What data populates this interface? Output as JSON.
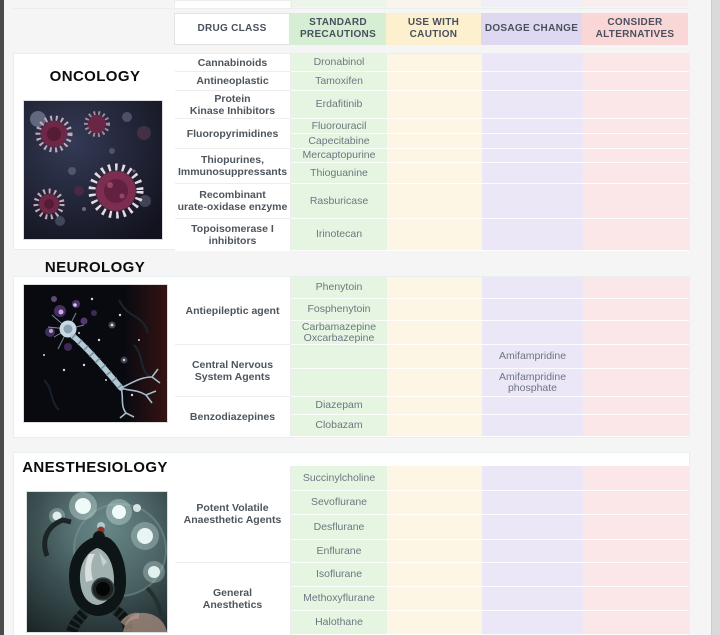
{
  "header": {
    "columns": [
      {
        "id": "drug_class",
        "label": "DRUG CLASS",
        "bg": "#ffffff"
      },
      {
        "id": "standard",
        "label": "STANDARD\nPRECAUTIONS",
        "bg": "#d6eed4"
      },
      {
        "id": "caution",
        "label": "USE WITH\nCAUTION",
        "bg": "#fcf0cf"
      },
      {
        "id": "dosage",
        "label": "DOSAGE CHANGE",
        "bg": "#dfd8f1"
      },
      {
        "id": "alternatives",
        "label": "CONSIDER\nALTERNATIVES",
        "bg": "#fad7d7"
      }
    ]
  },
  "colors": {
    "cell_standard": "#e6f5e2",
    "cell_caution": "#fdf6e4",
    "cell_dosage": "#ebe7f7",
    "cell_alternatives": "#fce7e8",
    "header_text": "#4a505d",
    "class_text": "#4d555d",
    "drug_text": "#6d7680"
  },
  "sections": [
    {
      "title": "ONCOLOGY",
      "image": "cancer-cells-image",
      "groups": [
        {
          "class": "Cannabinoids",
          "rows": [
            {
              "standard": "Dronabinol"
            }
          ]
        },
        {
          "class": "Antineoplastic",
          "rows": [
            {
              "standard": "Tamoxifen"
            }
          ]
        },
        {
          "class": "Protein\nKinase Inhibitors",
          "rows": [
            {
              "standard": "Erdafitinib"
            }
          ]
        },
        {
          "class": "Fluoropyrimidines",
          "rows": [
            {
              "standard": "Fluorouracil"
            },
            {
              "standard": "Capecitabine"
            }
          ]
        },
        {
          "class": "Thiopurines,\nImmunosuppressants",
          "rows": [
            {
              "standard": "Mercaptopurine"
            },
            {
              "standard": "Thioguanine"
            }
          ]
        },
        {
          "class": "Recombinant\nurate-oxidase enzyme",
          "rows": [
            {
              "standard": "Rasburicase"
            }
          ]
        },
        {
          "class": "Topoisomerase I\ninhibitors",
          "rows": [
            {
              "standard": "Irinotecan"
            }
          ]
        }
      ]
    },
    {
      "title": "NEUROLOGY",
      "image": "neuron-image",
      "groups": [
        {
          "class": "Antiepileptic agent",
          "rows": [
            {
              "standard": "Phenytoin"
            },
            {
              "standard": "Fosphenytoin"
            },
            {
              "standard": "Carbamazepine\nOxcarbazepine"
            }
          ]
        },
        {
          "class": "Central Nervous\nSystem Agents",
          "rows": [
            {
              "dosage": "Amifampridine"
            },
            {
              "dosage": "Amifampridine\nphosphate"
            }
          ]
        },
        {
          "class": "Benzodiazepines",
          "rows": [
            {
              "standard": "Diazepam"
            },
            {
              "standard": "Clobazam"
            }
          ]
        }
      ]
    },
    {
      "title": "ANESTHESIOLOGY",
      "image": "anesthesia-mask-image",
      "groups": [
        {
          "class": "Potent Volatile\nAnaesthetic Agents",
          "rows": [
            {
              "standard": "Succinylcholine"
            },
            {
              "standard": "Sevoflurane"
            },
            {
              "standard": "Desflurane"
            },
            {
              "standard": "Enflurane"
            }
          ]
        },
        {
          "class": "General\nAnesthetics",
          "rows": [
            {
              "standard": "Isoflurane"
            },
            {
              "standard": "Methoxyflurane"
            },
            {
              "standard": "Halothane"
            }
          ]
        }
      ]
    }
  ]
}
